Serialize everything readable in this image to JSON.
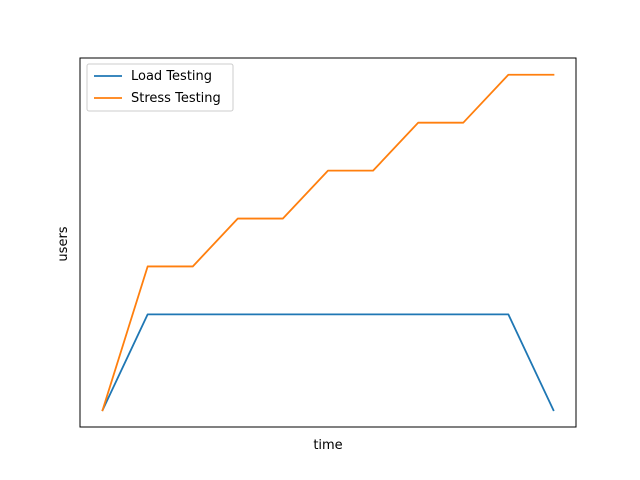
{
  "chart_data": {
    "type": "line",
    "title": "",
    "xlabel": "time",
    "ylabel": "users",
    "xticks_visible": false,
    "yticks_visible": false,
    "grid": false,
    "legend_position": "top-left",
    "xlim": [
      -0.5,
      10.5
    ],
    "ylim": [
      -0.35,
      7.35
    ],
    "x": [
      0,
      1,
      2,
      3,
      4,
      5,
      6,
      7,
      8,
      9,
      10
    ],
    "series": [
      {
        "name": "Load Testing",
        "color": "#1f77b4",
        "values": [
          0,
          2,
          2,
          2,
          2,
          2,
          2,
          2,
          2,
          2,
          0
        ]
      },
      {
        "name": "Stress Testing",
        "color": "#ff7f0e",
        "values": [
          0,
          3,
          3,
          4,
          4,
          5,
          5,
          6,
          6,
          7,
          7
        ]
      }
    ]
  }
}
